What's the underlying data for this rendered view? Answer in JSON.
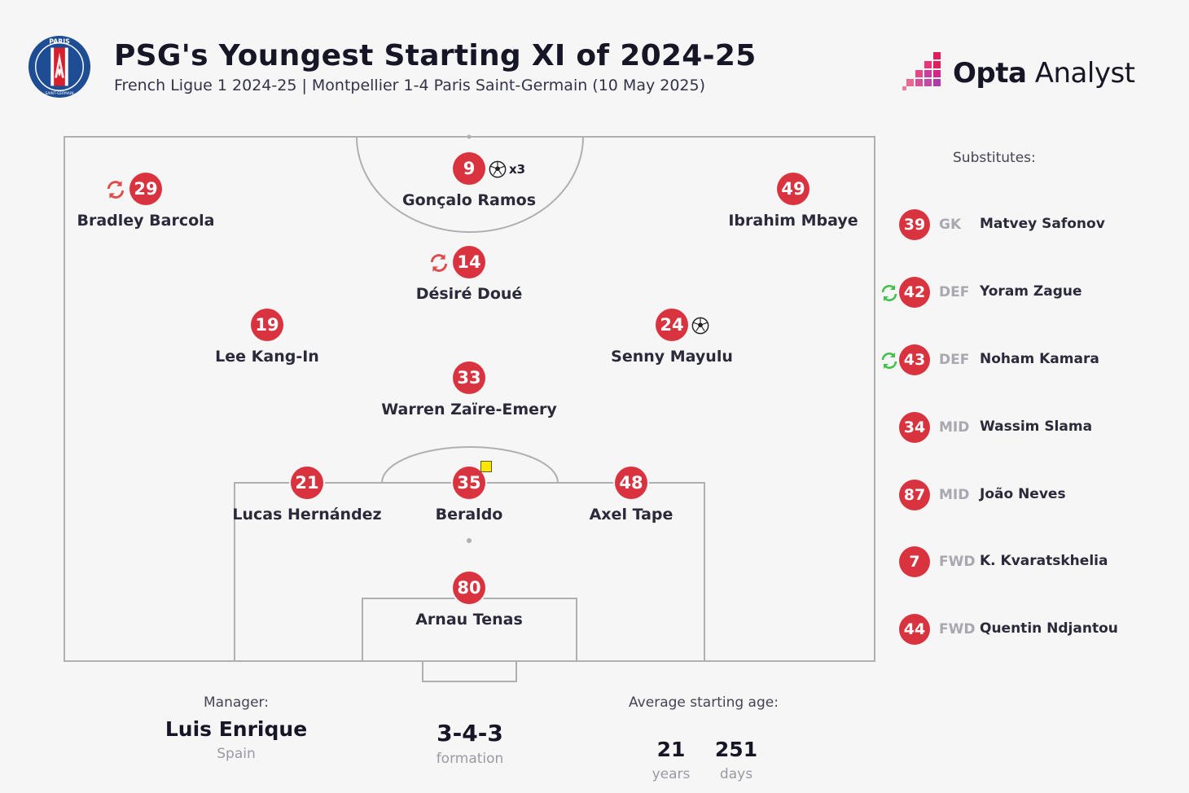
{
  "header": {
    "title": "PSG's Youngest Starting XI of 2024-25",
    "subtitle": "French Ligue 1 2024-25 | Montpellier 1-4 Paris Saint-Germain (10 May 2025)",
    "crest_text": "PARIS",
    "crest_subtext": "SAINT-GERMAIN",
    "brand_bold": "Opta",
    "brand_light": "Analyst"
  },
  "colors": {
    "badge": "#d93340",
    "pitch_line": "#aaaaaa",
    "sub_on": "#3ec24a",
    "sub_off": "#e04a4a",
    "yellow_card": "#ffe600",
    "crest_blue": "#1e4d94",
    "crest_red": "#d8202c"
  },
  "players": [
    {
      "number": "9",
      "name": "Gonçalo Ramos",
      "goals": "x3",
      "events": [
        "goal"
      ]
    },
    {
      "number": "29",
      "name": "Bradley Barcola",
      "events": [
        "subbed-off"
      ]
    },
    {
      "number": "49",
      "name": "Ibrahim Mbaye",
      "events": []
    },
    {
      "number": "14",
      "name": "Désiré Doué",
      "events": [
        "subbed-off"
      ]
    },
    {
      "number": "19",
      "name": "Lee Kang-In",
      "events": []
    },
    {
      "number": "24",
      "name": "Senny Mayulu",
      "events": [
        "goal"
      ]
    },
    {
      "number": "33",
      "name": "Warren Zaïre-Emery",
      "events": []
    },
    {
      "number": "21",
      "name": "Lucas Hernández",
      "events": []
    },
    {
      "number": "35",
      "name": "Beraldo",
      "events": [
        "yellow-card"
      ]
    },
    {
      "number": "48",
      "name": "Axel Tape",
      "events": []
    },
    {
      "number": "80",
      "name": "Arnau Tenas",
      "events": []
    }
  ],
  "substitutes": {
    "title": "Substitutes:",
    "items": [
      {
        "number": "39",
        "position": "GK",
        "name": "Matvey Safonov",
        "subbed_on": false
      },
      {
        "number": "42",
        "position": "DEF",
        "name": "Yoram Zague",
        "subbed_on": true
      },
      {
        "number": "43",
        "position": "DEF",
        "name": "Noham Kamara",
        "subbed_on": true
      },
      {
        "number": "34",
        "position": "MID",
        "name": "Wassim Slama",
        "subbed_on": false
      },
      {
        "number": "87",
        "position": "MID",
        "name": "João Neves",
        "subbed_on": false
      },
      {
        "number": "7",
        "position": "FWD",
        "name": "K. Kvaratskhelia",
        "subbed_on": false
      },
      {
        "number": "44",
        "position": "FWD",
        "name": "Quentin Ndjantou",
        "subbed_on": false
      }
    ]
  },
  "footer": {
    "manager_label": "Manager:",
    "manager_name": "Luis Enrique",
    "manager_country": "Spain",
    "formation": "3-4-3",
    "formation_label": "formation",
    "avg_age_label": "Average starting age:",
    "years": "21",
    "years_label": "years",
    "days": "251",
    "days_label": "days"
  }
}
